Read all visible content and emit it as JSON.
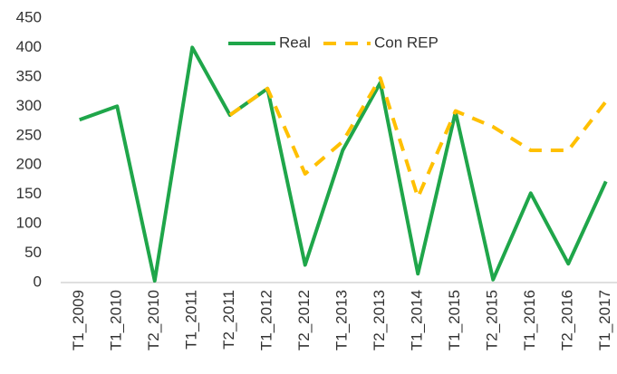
{
  "chart_data": {
    "type": "line",
    "categories": [
      "T1_2009",
      "T1_2010",
      "T2_2010",
      "T1_2011",
      "T2_2011",
      "T1_2012",
      "T2_2012",
      "T1_2013",
      "T2_2013",
      "T1_2014",
      "T1_2015",
      "T2_2015",
      "T1_2016",
      "T2_2016",
      "T1_2017"
    ],
    "series": [
      {
        "name": "Real",
        "color": "#1fa64a",
        "dashed": false,
        "values": [
          277,
          300,
          3,
          400,
          285,
          330,
          30,
          225,
          340,
          15,
          290,
          5,
          152,
          32,
          172
        ]
      },
      {
        "name": "Con REP",
        "color": "#ffc000",
        "dashed": true,
        "values": [
          null,
          null,
          null,
          null,
          285,
          330,
          185,
          240,
          348,
          145,
          292,
          265,
          225,
          225,
          308
        ]
      }
    ],
    "ylim": [
      0,
      450
    ],
    "yticks": [
      0,
      50,
      100,
      150,
      200,
      250,
      300,
      350,
      400,
      450
    ],
    "grid": false,
    "legend": "top"
  }
}
